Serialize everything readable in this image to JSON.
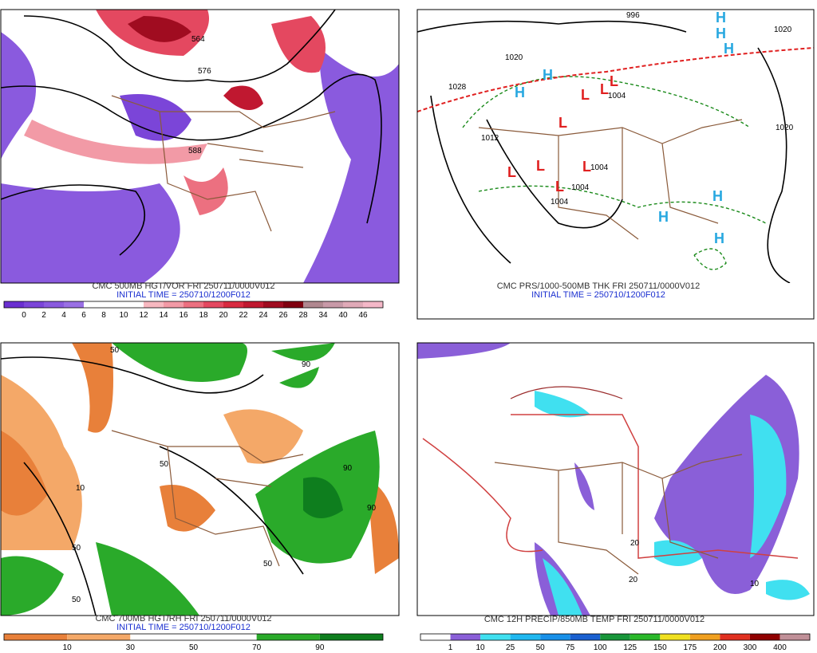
{
  "panels": [
    {
      "caption": "CMC 500MB HGT/VOR FRI 250711/0000V012",
      "initial_time": "INITIAL TIME = 250710/1200F012",
      "contour_labels": [
        "564",
        "576",
        "588"
      ],
      "colorbar": {
        "labels": [
          0,
          2,
          4,
          6,
          8,
          10,
          12,
          14,
          16,
          18,
          20,
          22,
          24,
          26,
          28,
          34,
          40,
          46
        ],
        "colors": [
          "#6a2fd0",
          "#7b45d8",
          "#8a5ade",
          "#9a70e4",
          "#ffffff",
          "#ffffff",
          "#ffffff",
          "#f7b8c0",
          "#f29aa6",
          "#ec7080",
          "#e44860",
          "#d82a40",
          "#c01830",
          "#a00c20",
          "#800010",
          "#b08890",
          "#c89aa8",
          "#e0aab8",
          "#f4b8c8"
        ]
      }
    },
    {
      "caption": "CMC PRS/1000-500MB THK FRI 250711/0000V012",
      "initial_time": "INITIAL TIME = 250710/1200F012",
      "symbols": [
        "H",
        "H",
        "H",
        "H",
        "H",
        "H",
        "H",
        "H",
        "L",
        "L",
        "L",
        "L",
        "L",
        "L",
        "L",
        "L"
      ],
      "contour_labels": [
        "996",
        "1020",
        "1020",
        "1028",
        "1004",
        "1004",
        "1004",
        "1012",
        "1020",
        "1004"
      ]
    },
    {
      "caption": "CMC 700MB HGT/RH FRI 250711/0000V012",
      "initial_time": "INITIAL TIME = 250710/1200F012",
      "contour_labels": [
        "50",
        "50",
        "90",
        "10",
        "50",
        "90",
        "50",
        "90",
        "50"
      ],
      "colorbar": {
        "labels": [
          10,
          30,
          50,
          70,
          90
        ],
        "colors": [
          "#e8803a",
          "#f4a868",
          "#ffffff",
          "#ffffff",
          "#2aaa2a",
          "#0e7e1e"
        ]
      }
    },
    {
      "caption": "CMC 12H PRECIP/850MB TEMP FRI 250711/0000V012",
      "contour_labels": [
        "20",
        "20",
        "10"
      ],
      "colorbar": {
        "labels": [
          1,
          10,
          25,
          50,
          75,
          100,
          125,
          150,
          175,
          200,
          300,
          400
        ],
        "colors": [
          "#ffffff",
          "#8a5fd8",
          "#40e0f0",
          "#20b8f0",
          "#1890e8",
          "#1a60d0",
          "#18963a",
          "#2ab82a",
          "#f0e020",
          "#f0a020",
          "#e03020",
          "#900000",
          "#c09098"
        ]
      }
    }
  ]
}
